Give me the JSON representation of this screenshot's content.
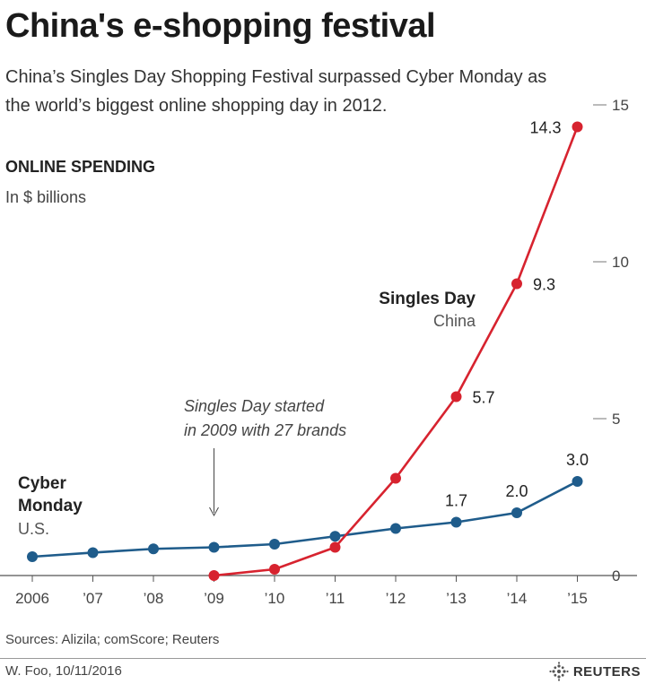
{
  "header": {
    "title": "China's e-shopping festival",
    "subtitle": "China’s Singles Day Shopping Festival surpassed Cyber Monday as the world’s biggest online shopping day in 2012.",
    "section_title": "ONLINE SPENDING",
    "unit": "In $ billions"
  },
  "chart_data": {
    "type": "line",
    "categories": [
      "2006",
      "’07",
      "’08",
      "’09",
      "’10",
      "’11",
      "’12",
      "’13",
      "’14",
      "’15"
    ],
    "yticks": [
      0,
      5,
      10,
      15
    ],
    "ylim": [
      0,
      15
    ],
    "y_axis_side": "right",
    "grid": false,
    "series": [
      {
        "name": "Cyber Monday",
        "sublabel": "U.S.",
        "color": "#1f5c8b",
        "values": [
          0.6,
          0.73,
          0.85,
          0.9,
          1.0,
          1.25,
          1.5,
          1.7,
          2.0,
          3.0
        ],
        "data_labels": [
          "",
          "",
          "",
          "",
          "",
          "",
          "",
          "1.7",
          "2.0",
          "3.0"
        ]
      },
      {
        "name": "Singles Day",
        "sublabel": "China",
        "color": "#d7232f",
        "values": [
          null,
          null,
          null,
          0.0,
          0.2,
          0.9,
          3.1,
          5.7,
          9.3,
          14.3
        ],
        "data_labels": [
          "",
          "",
          "",
          "",
          "",
          "",
          "",
          "5.7",
          "9.3",
          "14.3"
        ]
      }
    ],
    "annotation": {
      "text_line1": "Singles Day started",
      "text_line2": "in 2009 with 27 brands",
      "category_index": 3
    }
  },
  "footer": {
    "sources": "Sources: Alizila; comScore; Reuters",
    "byline": "W. Foo,  10/11/2016",
    "brand": "REUTERS"
  }
}
